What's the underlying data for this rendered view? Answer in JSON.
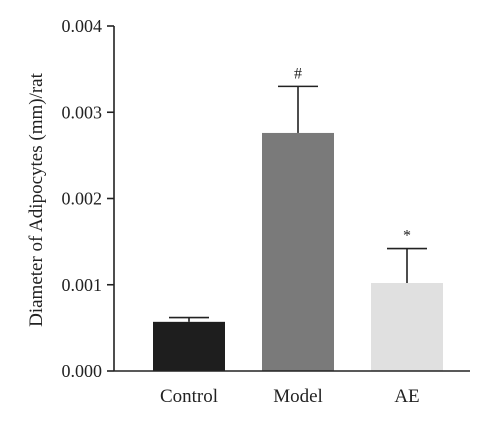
{
  "chart_data": {
    "type": "bar",
    "title": "",
    "xlabel": "",
    "ylabel": "Diameter of Adipocytes (mm)/rat",
    "ylim": [
      0,
      0.004
    ],
    "yticks": [
      "0.000",
      "0.001",
      "0.002",
      "0.003",
      "0.004"
    ],
    "ytick_values": [
      0,
      0.001,
      0.002,
      0.003,
      0.004
    ],
    "categories": [
      "Control",
      "Model",
      "AE"
    ],
    "values": [
      0.00057,
      0.00276,
      0.00102
    ],
    "error_upper": [
      5e-05,
      0.00054,
      0.0004
    ],
    "annotations": [
      "",
      "#",
      "*"
    ],
    "colors": [
      "#1e1e1e",
      "#7a7a7a",
      "#e0e0e0"
    ],
    "grid": false,
    "legend": "none"
  }
}
